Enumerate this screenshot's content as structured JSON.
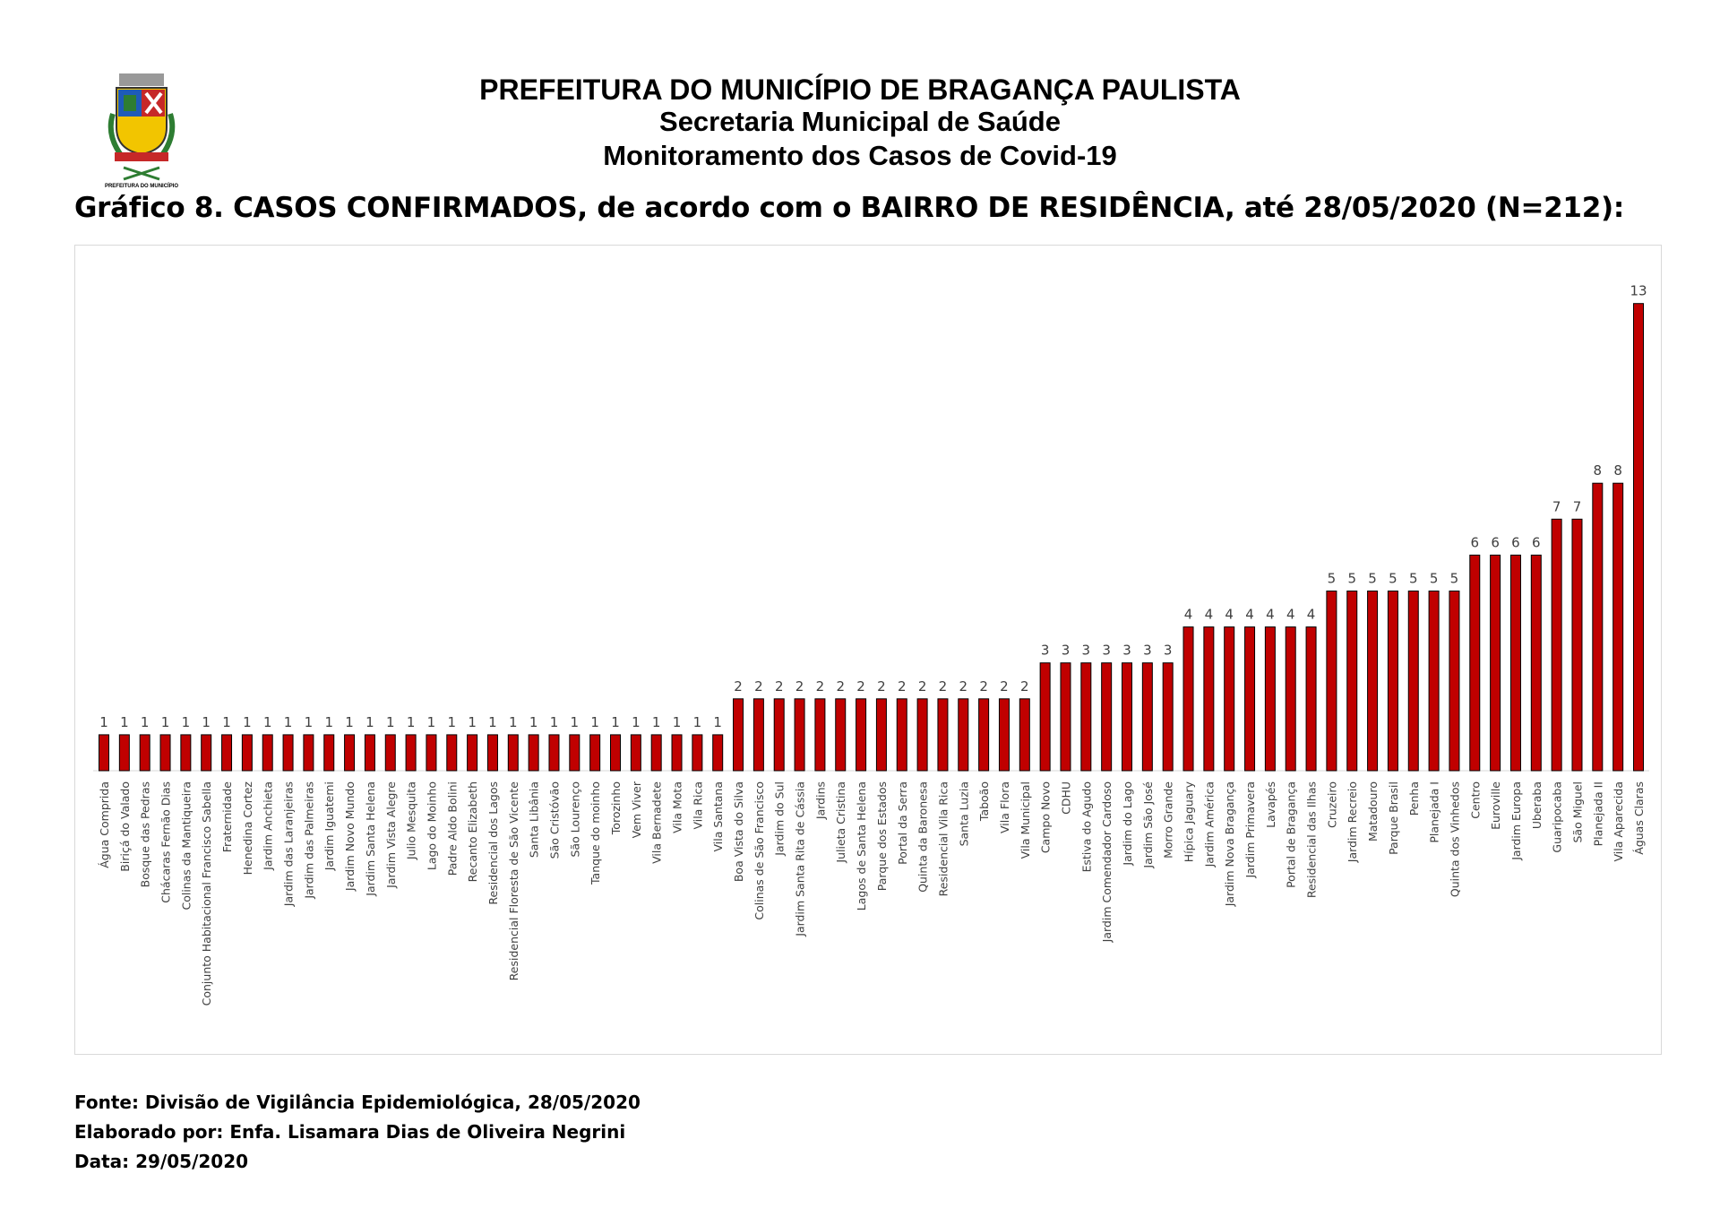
{
  "header": {
    "line1": "PREFEITURA DO MUNICÍPIO DE BRAGANÇA PAULISTA",
    "line2": "Secretaria Municipal de Saúde",
    "line3": "Monitoramento dos Casos de Covid-19",
    "logo_text": "PREFEITURA DO MUNICÍPIO DE BRAGANÇA PAULISTA"
  },
  "footer": {
    "source": "Fonte: Divisão de Vigilância Epidemiológica, 28/05/2020",
    "author": "Elaborado por: Enfa. Lisamara Dias de Oliveira Negrini",
    "date": "Data: 29/05/2020"
  },
  "colors": {
    "bar": "#c00000",
    "bar_outline": "#000000"
  },
  "chart_data": {
    "type": "bar",
    "title": "Gráfico 8. CASOS CONFIRMADOS, de acordo com o BAIRRO DE RESIDÊNCIA, até 28/05/2020 (N=212):",
    "xlabel": "",
    "ylabel": "",
    "ylim": [
      0,
      14
    ],
    "grid": false,
    "legend": "none",
    "categories": [
      "Água Comprida",
      "Biriçá do Valado",
      "Bosque das Pedras",
      "Chácaras Fernão Dias",
      "Colinas da Mantiqueira",
      "Conjunto Habitacional Francisco Sabella",
      "Fraternidade",
      "Henedina Cortez",
      "Jardim Anchieta",
      "Jardim das Laranjeiras",
      "Jardim das Palmeiras",
      "Jardim Iguatemi",
      "Jardim Novo Mundo",
      "Jardim Santa Helena",
      "Jardim Vista Alegre",
      "Julio Mesquita",
      "Lago do Moinho",
      "Padre Aldo Bolini",
      "Recanto Elizabeth",
      "Residencial dos Lagos",
      "Residencial Floresta de São Vicente",
      "Santa Libânia",
      "São Cristóvão",
      "São Lourenço",
      "Tanque do moinho",
      "Torozinho",
      "Vem Viver",
      "Vila Bernadete",
      "Vila Mota",
      "Vila Rica",
      "Vila Santana",
      "Boa Vista do Silva",
      "Colinas de São Francisco",
      "Jardim do Sul",
      "Jardim Santa Rita de Cássia",
      "Jardins",
      "Julieta Cristina",
      "Lagos de Santa Helena",
      "Parque dos Estados",
      "Portal da Serra",
      "Quinta da Baronesa",
      "Residencial Vila Rica",
      "Santa Luzia",
      "Taboão",
      "Vila Flora",
      "Vila Municipal",
      "Campo Novo",
      "CDHU",
      "Estiva do Agudo",
      "Jardim Comendador Cardoso",
      "Jardim do Lago",
      "Jardim São José",
      "Morro Grande",
      "Hípica Jaguary",
      "Jardim América",
      "Jardim Nova Bragança",
      "Jardim Primavera",
      "Lavapés",
      "Portal de Bragança",
      "Residencial das Ilhas",
      "Cruzeiro",
      "Jardim Recreio",
      "Matadouro",
      "Parque Brasil",
      "Penha",
      "Planejada I",
      "Quinta dos Vinhedos",
      "Centro",
      "Euroville",
      "Jardim Europa",
      "Uberaba",
      "Guaripocaba",
      "São Miguel",
      "Planejada II",
      "Vila Aparecida",
      "Águas Claras"
    ],
    "values": [
      1,
      1,
      1,
      1,
      1,
      1,
      1,
      1,
      1,
      1,
      1,
      1,
      1,
      1,
      1,
      1,
      1,
      1,
      1,
      1,
      1,
      1,
      1,
      1,
      1,
      1,
      1,
      1,
      1,
      1,
      1,
      2,
      2,
      2,
      2,
      2,
      2,
      2,
      2,
      2,
      2,
      2,
      2,
      2,
      2,
      2,
      3,
      3,
      3,
      3,
      3,
      3,
      3,
      4,
      4,
      4,
      4,
      4,
      4,
      4,
      5,
      5,
      5,
      5,
      5,
      5,
      5,
      6,
      6,
      6,
      6,
      7,
      7,
      8,
      8,
      13
    ]
  }
}
